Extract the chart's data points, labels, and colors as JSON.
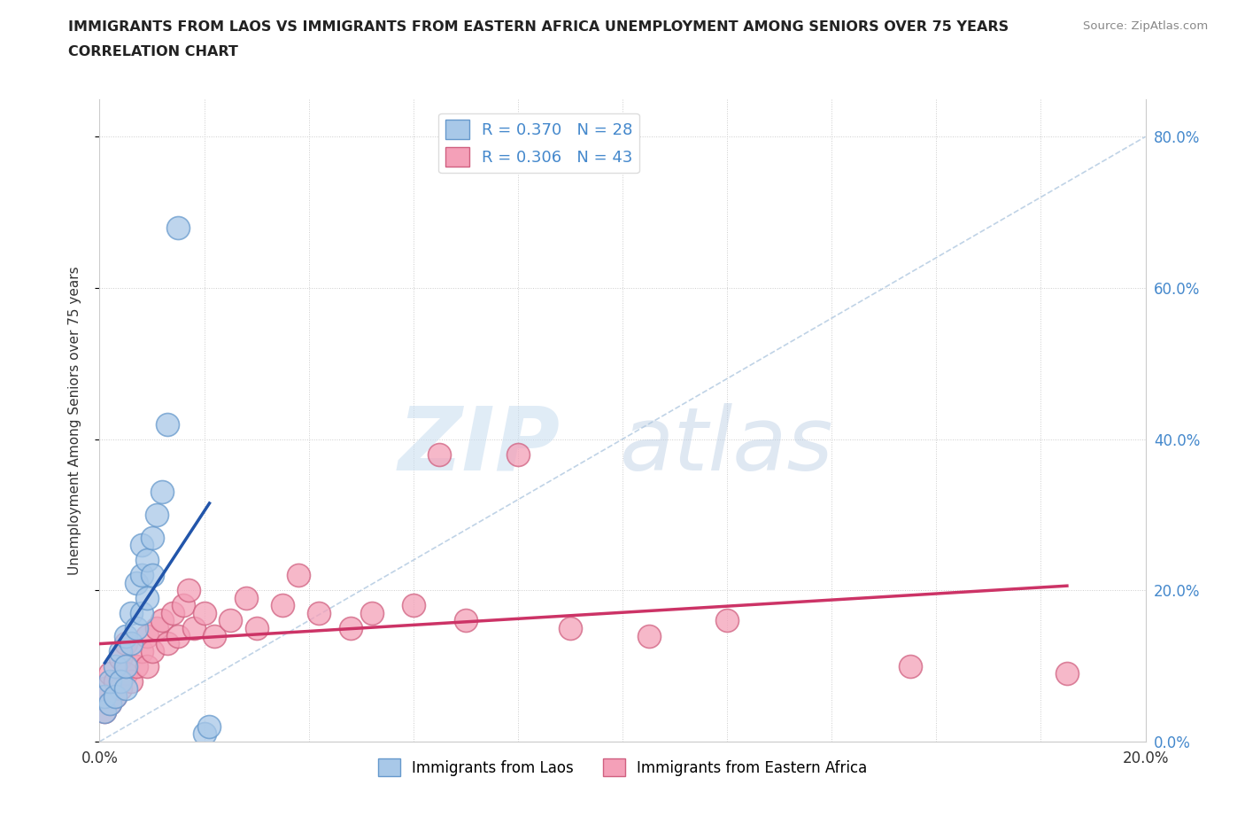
{
  "title_line1": "IMMIGRANTS FROM LAOS VS IMMIGRANTS FROM EASTERN AFRICA UNEMPLOYMENT AMONG SENIORS OVER 75 YEARS",
  "title_line2": "CORRELATION CHART",
  "source_text": "Source: ZipAtlas.com",
  "ylabel": "Unemployment Among Seniors over 75 years",
  "xlim": [
    0.0,
    0.2
  ],
  "ylim": [
    0.0,
    0.85
  ],
  "xticks": [
    0.0,
    0.02,
    0.04,
    0.06,
    0.08,
    0.1,
    0.12,
    0.14,
    0.16,
    0.18,
    0.2
  ],
  "xtick_labels": [
    "0.0%",
    "",
    "",
    "",
    "",
    "",
    "",
    "",
    "",
    "",
    "20.0%"
  ],
  "yticks": [
    0.0,
    0.2,
    0.4,
    0.6,
    0.8
  ],
  "ytick_labels_right": [
    "0.0%",
    "20.0%",
    "40.0%",
    "60.0%",
    "80.0%"
  ],
  "laos_color": "#a8c8e8",
  "laos_edge_color": "#6699cc",
  "eastern_africa_color": "#f4a0b8",
  "eastern_africa_edge_color": "#d06080",
  "laos_trend_color": "#2255aa",
  "eastern_africa_trend_color": "#cc3366",
  "diagonal_color": "#b0c8e0",
  "legend_laos_label": "Immigrants from Laos",
  "legend_eastern_africa_label": "Immigrants from Eastern Africa",
  "laos_R": 0.37,
  "laos_N": 28,
  "eastern_africa_R": 0.306,
  "eastern_africa_N": 43,
  "laos_x": [
    0.001,
    0.001,
    0.002,
    0.002,
    0.003,
    0.003,
    0.004,
    0.004,
    0.005,
    0.005,
    0.005,
    0.006,
    0.006,
    0.007,
    0.007,
    0.008,
    0.008,
    0.008,
    0.009,
    0.009,
    0.01,
    0.01,
    0.011,
    0.012,
    0.013,
    0.015,
    0.02,
    0.021
  ],
  "laos_y": [
    0.04,
    0.06,
    0.05,
    0.08,
    0.06,
    0.1,
    0.08,
    0.12,
    0.07,
    0.1,
    0.14,
    0.13,
    0.17,
    0.15,
    0.21,
    0.17,
    0.22,
    0.26,
    0.19,
    0.24,
    0.22,
    0.27,
    0.3,
    0.33,
    0.42,
    0.68,
    0.01,
    0.02
  ],
  "eastern_africa_x": [
    0.001,
    0.001,
    0.002,
    0.002,
    0.003,
    0.003,
    0.004,
    0.004,
    0.005,
    0.005,
    0.006,
    0.007,
    0.008,
    0.009,
    0.009,
    0.01,
    0.011,
    0.012,
    0.013,
    0.014,
    0.015,
    0.016,
    0.017,
    0.018,
    0.02,
    0.022,
    0.025,
    0.028,
    0.03,
    0.035,
    0.038,
    0.042,
    0.048,
    0.052,
    0.06,
    0.065,
    0.07,
    0.08,
    0.09,
    0.105,
    0.12,
    0.155,
    0.185
  ],
  "eastern_africa_y": [
    0.04,
    0.07,
    0.05,
    0.09,
    0.06,
    0.08,
    0.07,
    0.11,
    0.09,
    0.13,
    0.08,
    0.1,
    0.12,
    0.14,
    0.1,
    0.12,
    0.15,
    0.16,
    0.13,
    0.17,
    0.14,
    0.18,
    0.2,
    0.15,
    0.17,
    0.14,
    0.16,
    0.19,
    0.15,
    0.18,
    0.22,
    0.17,
    0.15,
    0.17,
    0.18,
    0.38,
    0.16,
    0.38,
    0.15,
    0.14,
    0.16,
    0.1,
    0.09
  ],
  "background_color": "#ffffff",
  "grid_color": "#cccccc",
  "right_ytick_color": "#4488cc",
  "title_color": "#222222",
  "source_color": "#888888"
}
